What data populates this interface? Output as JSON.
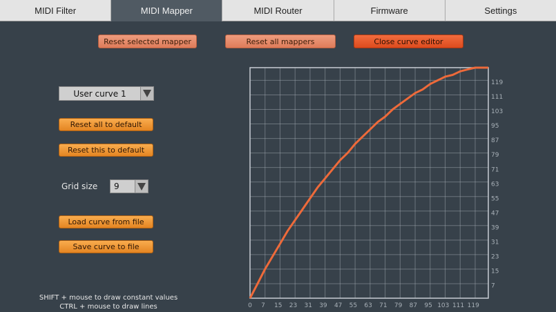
{
  "tabs": [
    {
      "label": "MIDI Filter"
    },
    {
      "label": "MIDI Mapper"
    },
    {
      "label": "MIDI Router"
    },
    {
      "label": "Firmware"
    },
    {
      "label": "Settings"
    }
  ],
  "top_buttons": {
    "reset_selected": "Reset selected mapper",
    "reset_all": "Reset all mappers",
    "close_editor": "Close curve editor"
  },
  "curve_select": {
    "value": "User curve 1"
  },
  "buttons": {
    "reset_all_default": "Reset all to default",
    "reset_this_default": "Reset this to default",
    "load_curve": "Load curve from file",
    "save_curve": "Save curve to file"
  },
  "grid_size": {
    "label": "Grid size",
    "value": "9"
  },
  "hints": {
    "line1": "SHIFT + mouse to draw constant values",
    "line2": "CTRL + mouse to draw lines"
  },
  "colors": {
    "curve": "#ee6a3a",
    "grid": "#aab2ba",
    "accent": "#e4551f"
  },
  "chart_data": {
    "type": "line",
    "xlim": [
      0,
      127
    ],
    "ylim": [
      0,
      127
    ],
    "x_ticks": [
      "0",
      "7",
      "15",
      "23",
      "31",
      "39",
      "47",
      "55",
      "63",
      "71",
      "79",
      "87",
      "95",
      "103",
      "111",
      "119"
    ],
    "y_ticks": [
      "7",
      "15",
      "23",
      "31",
      "39",
      "47",
      "55",
      "63",
      "71",
      "79",
      "87",
      "95",
      "103",
      "111",
      "119"
    ],
    "series": [
      {
        "x": [
          0,
          4,
          8,
          12,
          16,
          20,
          24,
          28,
          32,
          36,
          40,
          44,
          48,
          52,
          56,
          60,
          64,
          68,
          72,
          76,
          80,
          84,
          88,
          92,
          96,
          100,
          104,
          108,
          112,
          116,
          120,
          124,
          127
        ],
        "values": [
          0,
          8,
          16,
          23,
          30,
          37,
          43,
          49,
          55,
          61,
          66,
          71,
          76,
          80,
          85,
          89,
          93,
          97,
          100,
          104,
          107,
          110,
          113,
          115,
          118,
          120,
          122,
          123,
          125,
          126,
          127,
          127,
          127
        ]
      }
    ]
  }
}
